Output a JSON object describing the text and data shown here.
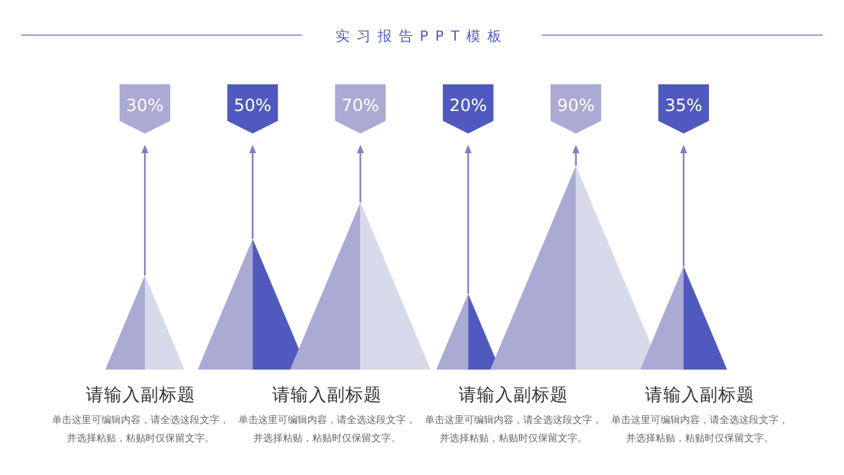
{
  "chart_data": {
    "type": "other",
    "title": "实习报告PPT模板",
    "categories": [
      null,
      null,
      null,
      null,
      null,
      null
    ],
    "values": [
      30,
      50,
      70,
      20,
      90,
      35
    ],
    "colors": [
      "#aaaad4",
      "#5059be",
      "#aaaad4",
      "#5059be",
      "#aaaad4",
      "#5059be"
    ],
    "value_labels": [
      "30%",
      "50%",
      "70%",
      "20%",
      "90%",
      "35%"
    ],
    "annotations": [
      "请输入副标题",
      "单击这里可编辑内容，请全选这段文字，",
      "并选择粘贴，粘贴时仅保留文字。",
      "请输入副标题",
      "单击这里可编辑内容，请全选这段文字，",
      "并选择粘贴，粘贴时仅保留文字。",
      "请输入副标题",
      "单击这里可编辑内容，请全选这段文字，",
      "并选择粘贴，粘贴时仅保留文字。",
      "请输入副标题",
      "单击这里可编辑内容，请全选这段文字，",
      "并选择粘贴，粘贴时仅保留文字。"
    ]
  }
}
